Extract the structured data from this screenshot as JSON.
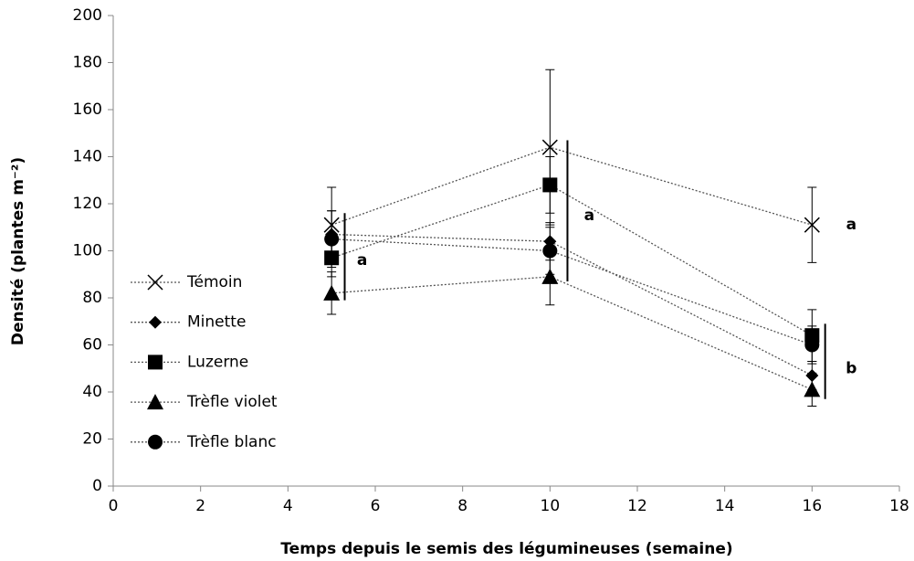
{
  "chart_data": {
    "type": "line",
    "xlabel": "Temps depuis le semis des légumineuses (semaine)",
    "ylabel": "Densité (plantes m⁻²)",
    "x": [
      5,
      10,
      16
    ],
    "xlim": [
      0,
      18
    ],
    "xticks": [
      0,
      2,
      4,
      6,
      8,
      10,
      12,
      14,
      16,
      18
    ],
    "ylim": [
      0,
      200
    ],
    "yticks": [
      0,
      20,
      40,
      60,
      80,
      100,
      120,
      140,
      160,
      180,
      200
    ],
    "legend": "left",
    "series": [
      {
        "name": "Témoin",
        "color": "#000000",
        "marker": "x",
        "values": [
          111,
          144,
          111
        ],
        "errors": [
          16,
          33,
          16
        ]
      },
      {
        "name": "Minette",
        "color": "#000000",
        "marker": "diamond",
        "values": [
          107,
          104,
          47
        ],
        "errors": [
          10,
          8,
          6
        ]
      },
      {
        "name": "Luzerne",
        "color": "#000000",
        "marker": "square",
        "values": [
          97,
          128,
          64
        ],
        "errors": [
          8,
          12,
          11
        ]
      },
      {
        "name": "Trèfle violet",
        "color": "#000000",
        "marker": "triangle",
        "values": [
          82,
          89,
          41
        ],
        "errors": [
          9,
          12,
          7
        ]
      },
      {
        "name": "Trèfle blanc",
        "color": "#000000",
        "marker": "circle",
        "values": [
          105,
          100,
          60
        ],
        "errors": [
          12,
          10,
          8
        ]
      }
    ],
    "brackets": [
      {
        "x": 5.3,
        "y0": 79,
        "y1": 116
      },
      {
        "x": 10.4,
        "y0": 87,
        "y1": 147
      },
      {
        "x": 16.3,
        "y0": 37,
        "y1": 69
      }
    ],
    "annotations": [
      {
        "text": "a",
        "x": 5.7,
        "y": 96
      },
      {
        "text": "a",
        "x": 10.9,
        "y": 115
      },
      {
        "text": "a",
        "x": 16.9,
        "y": 111
      },
      {
        "text": "b",
        "x": 16.9,
        "y": 50
      }
    ]
  }
}
